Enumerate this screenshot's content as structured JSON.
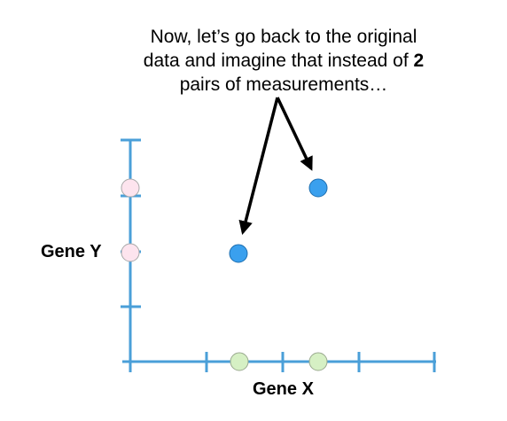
{
  "annotation": {
    "line1": "Now, let’s go back to the original",
    "line2_prefix": "data and imagine that instead of ",
    "line2_bold": "2",
    "line3": "pairs of measurements…"
  },
  "axes": {
    "y_label": "Gene Y",
    "x_label": "Gene X"
  },
  "colors": {
    "axis": "#4a9fd8",
    "blue_point_fill": "#3aa0ee",
    "blue_point_stroke": "#1f6fb0",
    "pink_point_fill": "#fde4ee",
    "pink_point_stroke": "#a9a9a9",
    "green_point_fill": "#d6f0c4",
    "green_point_stroke": "#9aa98f",
    "arrow": "#000000"
  }
}
